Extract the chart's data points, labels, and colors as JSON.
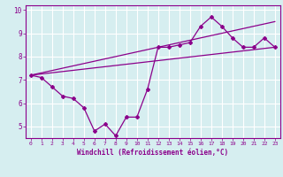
{
  "title": "",
  "xlabel": "Windchill (Refroidissement éolien,°C)",
  "ylabel": "",
  "bg_color": "#d6eef0",
  "line_color": "#8b008b",
  "grid_color": "#ffffff",
  "xlim": [
    -0.5,
    23.5
  ],
  "ylim": [
    4.5,
    10.2
  ],
  "xticks": [
    0,
    1,
    2,
    3,
    4,
    5,
    6,
    7,
    8,
    9,
    10,
    11,
    12,
    13,
    14,
    15,
    16,
    17,
    18,
    19,
    20,
    21,
    22,
    23
  ],
  "yticks": [
    5,
    6,
    7,
    8,
    9,
    10
  ],
  "series1_x": [
    0,
    1,
    2,
    3,
    4,
    5,
    6,
    7,
    8,
    9,
    10,
    11,
    12,
    13,
    14,
    15,
    16,
    17,
    18,
    19,
    20,
    21,
    22,
    23
  ],
  "series1_y": [
    7.2,
    7.1,
    6.7,
    6.3,
    6.2,
    5.8,
    4.8,
    5.1,
    4.6,
    5.4,
    5.4,
    6.6,
    8.4,
    8.4,
    8.5,
    8.6,
    9.3,
    9.7,
    9.3,
    8.8,
    8.4,
    8.4,
    8.8,
    8.4
  ],
  "series2_x": [
    0,
    23
  ],
  "series2_y": [
    7.2,
    8.4
  ],
  "series3_x": [
    0,
    23
  ],
  "series3_y": [
    7.2,
    9.5
  ]
}
